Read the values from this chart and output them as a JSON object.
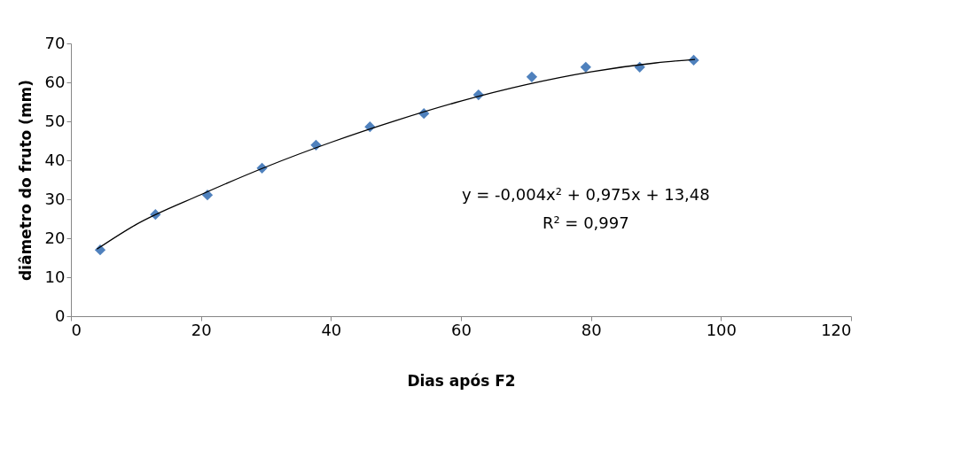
{
  "chart_data": {
    "type": "scatter",
    "xlabel": "Dias após F2",
    "ylabel": "diâmetro do fruto (mm)",
    "x": [
      4.5,
      13,
      21,
      29.4,
      37.7,
      46,
      54.3,
      62.7,
      70.9,
      79.2,
      87.5,
      95.8
    ],
    "series": [
      {
        "color": "#4f81bd",
        "marker": "diamond",
        "values": [
          17.0,
          26.1,
          31.1,
          38.0,
          43.9,
          48.6,
          52.0,
          56.8,
          61.4,
          63.9,
          63.9,
          65.7
        ]
      },
      {
        "type": "line",
        "color": "#000000",
        "line_style": "solid",
        "x": [
          4,
          10,
          20,
          30,
          40,
          50,
          60,
          70,
          80,
          90,
          96
        ],
        "values": [
          17.2,
          23.5,
          31.2,
          38.3,
          44.6,
          50.2,
          55.2,
          59.4,
          62.7,
          65.0,
          65.9
        ]
      }
    ],
    "xlim": [
      0,
      120
    ],
    "xticks": [
      0,
      20,
      40,
      60,
      80,
      100,
      120
    ],
    "ylim": [
      0,
      70
    ],
    "yticks": [
      0,
      10,
      20,
      30,
      40,
      50,
      60,
      70
    ],
    "grid": false,
    "annotations": [
      "y = -0,004x² + 0,975x + 13,48",
      "R² = 0,997"
    ]
  }
}
